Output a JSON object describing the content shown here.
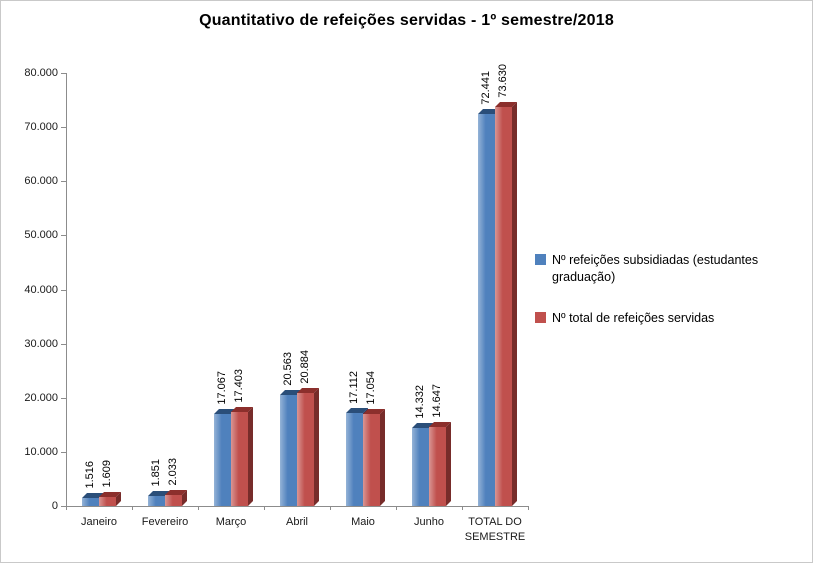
{
  "chart_data": {
    "type": "bar",
    "title": "Quantitativo de refeições servidas - 1º semestre/2018",
    "xlabel": "",
    "ylabel": "",
    "categories": [
      "Janeiro",
      "Fevereiro",
      "Março",
      "Abril",
      "Maio",
      "Junho",
      "TOTAL DO SEMESTRE"
    ],
    "series": [
      {
        "name": "Nº refeições subsidiadas (estudantes graduação)",
        "color": "#4F81BD",
        "color_light": "#95B3D7",
        "color_top": "#2A4E79",
        "color_side": "#1F3864",
        "values": [
          1516,
          1851,
          17067,
          20563,
          17112,
          14332,
          72441
        ],
        "labels": [
          "1.516",
          "1.851",
          "17.067",
          "20.563",
          "17.112",
          "14.332",
          "72.441"
        ]
      },
      {
        "name": "Nº total de refeições servidas",
        "color": "#C0504D",
        "color_light": "#D99694",
        "color_top": "#8C2F2C",
        "color_side": "#772C2A",
        "values": [
          1609,
          2033,
          17403,
          20884,
          17054,
          14647,
          73630
        ],
        "labels": [
          "1.609",
          "2.033",
          "17.403",
          "20.884",
          "17.054",
          "14.647",
          "73.630"
        ]
      }
    ],
    "ylim": [
      0,
      80000
    ],
    "ytick_step": 10000,
    "ytick_labels": [
      "0",
      "10.000",
      "20.000",
      "30.000",
      "40.000",
      "50.000",
      "60.000",
      "70.000",
      "80.000"
    ],
    "legend_position": "right",
    "grid": false
  }
}
